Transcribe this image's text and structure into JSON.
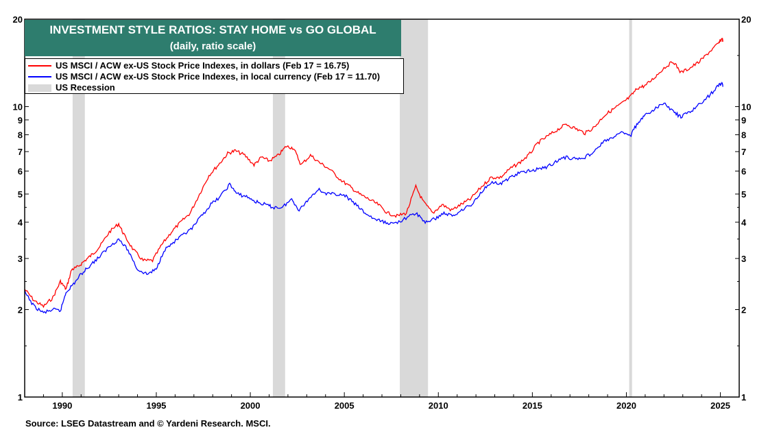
{
  "chart_data": {
    "type": "line",
    "title": "INVESTMENT STYLE RATIOS: STAY HOME vs GO GLOBAL",
    "subtitle": "(daily, ratio scale)",
    "xlim": [
      1988.0,
      2026.0
    ],
    "ylim": [
      1,
      20
    ],
    "y_scale": "log",
    "x_ticks": [
      1990,
      1995,
      2000,
      2005,
      2010,
      2015,
      2020,
      2025
    ],
    "y_ticks": [
      1,
      2,
      3,
      4,
      5,
      6,
      7,
      8,
      9,
      10,
      20
    ],
    "grid": false,
    "legend_placement": "top-left",
    "series": [
      {
        "name": "US MSCI / ACW ex-US Stock Price Indexes, in dollars (Feb 17 = 16.75)",
        "color": "#ff0000",
        "points": [
          [
            1988.0,
            2.35
          ],
          [
            1988.5,
            2.15
          ],
          [
            1989.0,
            2.05
          ],
          [
            1989.5,
            2.2
          ],
          [
            1989.9,
            2.5
          ],
          [
            1990.2,
            2.35
          ],
          [
            1990.5,
            2.75
          ],
          [
            1990.8,
            2.8
          ],
          [
            1991.2,
            2.95
          ],
          [
            1991.6,
            3.1
          ],
          [
            1992.0,
            3.3
          ],
          [
            1992.5,
            3.7
          ],
          [
            1993.0,
            3.95
          ],
          [
            1993.3,
            3.6
          ],
          [
            1993.8,
            3.2
          ],
          [
            1994.3,
            2.95
          ],
          [
            1994.8,
            2.95
          ],
          [
            1995.3,
            3.35
          ],
          [
            1995.8,
            3.7
          ],
          [
            1996.3,
            4.0
          ],
          [
            1996.8,
            4.3
          ],
          [
            1997.3,
            5.0
          ],
          [
            1997.8,
            5.8
          ],
          [
            1998.3,
            6.3
          ],
          [
            1998.8,
            6.9
          ],
          [
            1999.2,
            7.05
          ],
          [
            1999.7,
            6.8
          ],
          [
            2000.2,
            6.3
          ],
          [
            2000.6,
            6.7
          ],
          [
            2001.0,
            6.5
          ],
          [
            2001.5,
            6.8
          ],
          [
            2001.9,
            7.3
          ],
          [
            2002.3,
            7.2
          ],
          [
            2002.7,
            6.3
          ],
          [
            2003.2,
            6.8
          ],
          [
            2003.7,
            6.4
          ],
          [
            2004.2,
            6.1
          ],
          [
            2004.8,
            5.6
          ],
          [
            2005.3,
            5.3
          ],
          [
            2005.8,
            5.0
          ],
          [
            2006.3,
            4.8
          ],
          [
            2006.8,
            4.6
          ],
          [
            2007.3,
            4.3
          ],
          [
            2007.8,
            4.2
          ],
          [
            2008.3,
            4.3
          ],
          [
            2008.8,
            5.3
          ],
          [
            2009.2,
            4.7
          ],
          [
            2009.7,
            4.3
          ],
          [
            2010.2,
            4.6
          ],
          [
            2010.7,
            4.4
          ],
          [
            2011.2,
            4.6
          ],
          [
            2011.7,
            4.8
          ],
          [
            2012.3,
            5.3
          ],
          [
            2012.8,
            5.7
          ],
          [
            2013.3,
            5.7
          ],
          [
            2013.8,
            6.1
          ],
          [
            2014.3,
            6.4
          ],
          [
            2014.8,
            6.8
          ],
          [
            2015.3,
            7.5
          ],
          [
            2015.8,
            7.9
          ],
          [
            2016.3,
            8.3
          ],
          [
            2016.8,
            8.7
          ],
          [
            2017.3,
            8.4
          ],
          [
            2017.8,
            8.1
          ],
          [
            2018.3,
            8.5
          ],
          [
            2018.8,
            9.3
          ],
          [
            2019.3,
            9.8
          ],
          [
            2019.8,
            10.3
          ],
          [
            2020.2,
            10.8
          ],
          [
            2020.6,
            11.6
          ],
          [
            2021.0,
            11.8
          ],
          [
            2021.5,
            12.6
          ],
          [
            2022.0,
            13.6
          ],
          [
            2022.5,
            14.3
          ],
          [
            2022.9,
            13.1
          ],
          [
            2023.4,
            13.6
          ],
          [
            2023.9,
            14.3
          ],
          [
            2024.4,
            15.4
          ],
          [
            2024.9,
            16.5
          ],
          [
            2025.1,
            17.2
          ],
          [
            2025.13,
            16.75
          ]
        ]
      },
      {
        "name": "US MSCI / ACW ex-US Stock Price Indexes, in local currency (Feb 17 = 11.70)",
        "color": "#0000ff",
        "points": [
          [
            1988.0,
            2.3
          ],
          [
            1988.5,
            2.05
          ],
          [
            1989.0,
            1.95
          ],
          [
            1989.5,
            2.0
          ],
          [
            1989.9,
            1.98
          ],
          [
            1990.2,
            2.3
          ],
          [
            1990.6,
            2.45
          ],
          [
            1991.0,
            2.65
          ],
          [
            1991.5,
            2.85
          ],
          [
            1992.0,
            3.05
          ],
          [
            1992.5,
            3.3
          ],
          [
            1993.0,
            3.5
          ],
          [
            1993.5,
            3.2
          ],
          [
            1994.0,
            2.75
          ],
          [
            1994.5,
            2.65
          ],
          [
            1995.0,
            2.75
          ],
          [
            1995.4,
            3.2
          ],
          [
            1995.9,
            3.4
          ],
          [
            1996.4,
            3.6
          ],
          [
            1996.9,
            3.8
          ],
          [
            1997.4,
            4.2
          ],
          [
            1997.9,
            4.6
          ],
          [
            1998.4,
            4.9
          ],
          [
            1998.9,
            5.4
          ],
          [
            1999.3,
            5.0
          ],
          [
            1999.8,
            4.9
          ],
          [
            2000.3,
            4.7
          ],
          [
            2000.8,
            4.6
          ],
          [
            2001.2,
            4.5
          ],
          [
            2001.7,
            4.5
          ],
          [
            2002.2,
            4.8
          ],
          [
            2002.6,
            4.4
          ],
          [
            2003.1,
            4.8
          ],
          [
            2003.6,
            5.2
          ],
          [
            2004.1,
            5.0
          ],
          [
            2004.6,
            5.0
          ],
          [
            2005.1,
            4.9
          ],
          [
            2005.6,
            4.6
          ],
          [
            2006.1,
            4.3
          ],
          [
            2006.6,
            4.1
          ],
          [
            2007.1,
            4.0
          ],
          [
            2007.6,
            3.95
          ],
          [
            2008.2,
            4.1
          ],
          [
            2008.8,
            4.3
          ],
          [
            2009.3,
            4.0
          ],
          [
            2009.8,
            4.1
          ],
          [
            2010.3,
            4.3
          ],
          [
            2010.8,
            4.2
          ],
          [
            2011.3,
            4.45
          ],
          [
            2011.8,
            4.6
          ],
          [
            2012.3,
            5.1
          ],
          [
            2012.8,
            5.5
          ],
          [
            2013.3,
            5.4
          ],
          [
            2013.8,
            5.7
          ],
          [
            2014.3,
            5.9
          ],
          [
            2014.8,
            6.0
          ],
          [
            2015.3,
            6.1
          ],
          [
            2015.8,
            6.2
          ],
          [
            2016.3,
            6.5
          ],
          [
            2016.8,
            6.7
          ],
          [
            2017.3,
            6.6
          ],
          [
            2017.8,
            6.7
          ],
          [
            2018.3,
            7.0
          ],
          [
            2018.8,
            7.6
          ],
          [
            2019.3,
            7.8
          ],
          [
            2019.8,
            8.2
          ],
          [
            2020.2,
            7.9
          ],
          [
            2020.6,
            8.8
          ],
          [
            2021.0,
            9.3
          ],
          [
            2021.5,
            9.8
          ],
          [
            2022.0,
            10.3
          ],
          [
            2022.5,
            9.6
          ],
          [
            2022.9,
            9.2
          ],
          [
            2023.4,
            9.6
          ],
          [
            2023.9,
            10.2
          ],
          [
            2024.4,
            10.9
          ],
          [
            2024.9,
            11.8
          ],
          [
            2025.1,
            12.1
          ],
          [
            2025.13,
            11.7
          ]
        ]
      }
    ],
    "recessions": [
      [
        1990.55,
        1991.2
      ],
      [
        2001.2,
        2001.85
      ],
      [
        2007.95,
        2009.45
      ],
      [
        2020.15,
        2020.3
      ]
    ],
    "recession_label": "US Recession"
  },
  "legend": {
    "red_label": "US MSCI / ACW ex-US Stock Price Indexes, in dollars (Feb 17 = 16.75)",
    "blue_label": "US MSCI / ACW ex-US Stock Price Indexes, in local currency (Feb 17 = 11.70)",
    "recession_label": "US Recession"
  },
  "source": "Source: LSEG Datastream and © Yardeni Research. MSCI."
}
